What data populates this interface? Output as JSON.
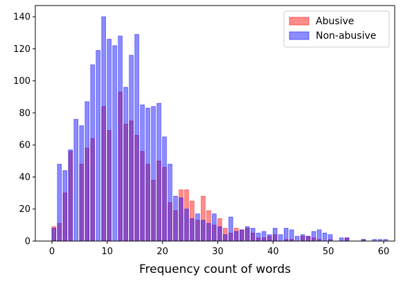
{
  "chart_data": {
    "type": "bar",
    "title": "",
    "xlabel": "Frequency count of words",
    "ylabel": "",
    "xlim": [
      -3,
      62
    ],
    "ylim": [
      0,
      147
    ],
    "xticks": [
      0,
      10,
      20,
      30,
      40,
      50,
      60
    ],
    "yticks": [
      0,
      20,
      40,
      60,
      80,
      100,
      120,
      140
    ],
    "grid": false,
    "legend_position": "top-right",
    "bin_width": 0.72,
    "series": [
      {
        "name": "Abusive",
        "color": "#ff0000",
        "x": [
          0,
          1,
          2,
          3,
          5,
          6,
          7,
          9,
          10,
          12,
          13,
          14,
          15,
          16,
          17,
          18,
          19,
          20,
          21,
          22,
          23,
          24,
          25,
          26,
          27,
          28,
          29,
          30,
          31,
          32,
          33,
          34,
          35,
          36,
          37,
          38,
          39,
          40,
          42,
          43,
          45,
          46,
          47,
          48,
          50,
          53,
          56
        ],
        "values": [
          9,
          11,
          30,
          56,
          48,
          58,
          64,
          84,
          69,
          93,
          73,
          75,
          66,
          56,
          48,
          38,
          50,
          46,
          24,
          19,
          32,
          32,
          25,
          13,
          28,
          19,
          10,
          14,
          8,
          5,
          8,
          7,
          8,
          5,
          2,
          2,
          3,
          4,
          1,
          1,
          3,
          3,
          2,
          1,
          1,
          2,
          1
        ]
      },
      {
        "name": "Non-abusive",
        "color": "#0000ff",
        "x": [
          0,
          1,
          2,
          3,
          5,
          6,
          7,
          9,
          10,
          12,
          13,
          14,
          15,
          16,
          17,
          18,
          19,
          20,
          21,
          22,
          23,
          24,
          25,
          26,
          27,
          28,
          29,
          30,
          31,
          32,
          33,
          34,
          35,
          36,
          37,
          38,
          39,
          40,
          42,
          43,
          45,
          46,
          47,
          48,
          50,
          53,
          56
        ],
        "values": [
          8,
          48,
          44,
          57,
          72,
          87,
          110,
          140,
          126,
          128,
          96,
          116,
          129,
          85,
          83,
          84,
          86,
          65,
          48,
          28,
          27,
          20,
          14,
          17,
          13,
          11,
          17,
          9,
          4,
          15,
          6,
          7,
          9,
          8,
          5,
          6,
          4,
          8,
          8,
          7,
          4,
          3,
          6,
          7,
          4,
          2,
          1
        ]
      }
    ],
    "extra_bars": [
      {
        "series": "Non-abusive",
        "x": 4,
        "value": 76
      },
      {
        "series": "Non-abusive",
        "x": 8,
        "value": 119
      },
      {
        "series": "Non-abusive",
        "x": 11,
        "value": 122
      },
      {
        "series": "Non-abusive",
        "x": 41,
        "value": 4
      },
      {
        "series": "Non-abusive",
        "x": 44,
        "value": 3
      },
      {
        "series": "Non-abusive",
        "x": 49,
        "value": 5
      },
      {
        "series": "Non-abusive",
        "x": 52,
        "value": 2
      },
      {
        "series": "Non-abusive",
        "x": 58,
        "value": 1
      },
      {
        "series": "Non-abusive",
        "x": 59,
        "value": 1
      },
      {
        "series": "Non-abusive",
        "x": 60,
        "value": 1
      }
    ]
  }
}
